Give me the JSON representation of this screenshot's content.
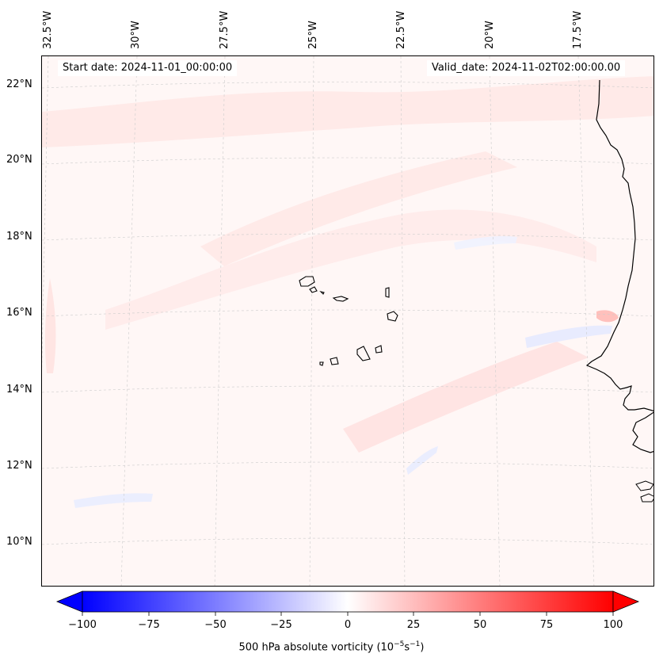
{
  "header": {
    "start_date": "Start date: 2024-11-01_00:00:00",
    "valid_date": "Valid_date: 2024-11-02T02:00:00.00"
  },
  "longitude_labels": [
    "32.5°W",
    "30°W",
    "27.5°W",
    "25°W",
    "22.5°W",
    "20°W",
    "17.5°W"
  ],
  "latitude_labels": [
    "22°N",
    "20°N",
    "18°N",
    "16°N",
    "14°N",
    "12°N",
    "10°N"
  ],
  "colorbar": {
    "label": "500 hPa absolute vorticity (10",
    "label_exp1": "−5",
    "label_mid": "s",
    "label_exp2": "−1",
    "label_end": ")",
    "min": -100,
    "max": 100,
    "tick_labels": [
      "−100",
      "−75",
      "−50",
      "−25",
      "0",
      "25",
      "50",
      "75",
      "100"
    ],
    "colors": {
      "negative": "#0000ff",
      "zero": "#ffffff",
      "positive": "#ff0000"
    }
  }
}
